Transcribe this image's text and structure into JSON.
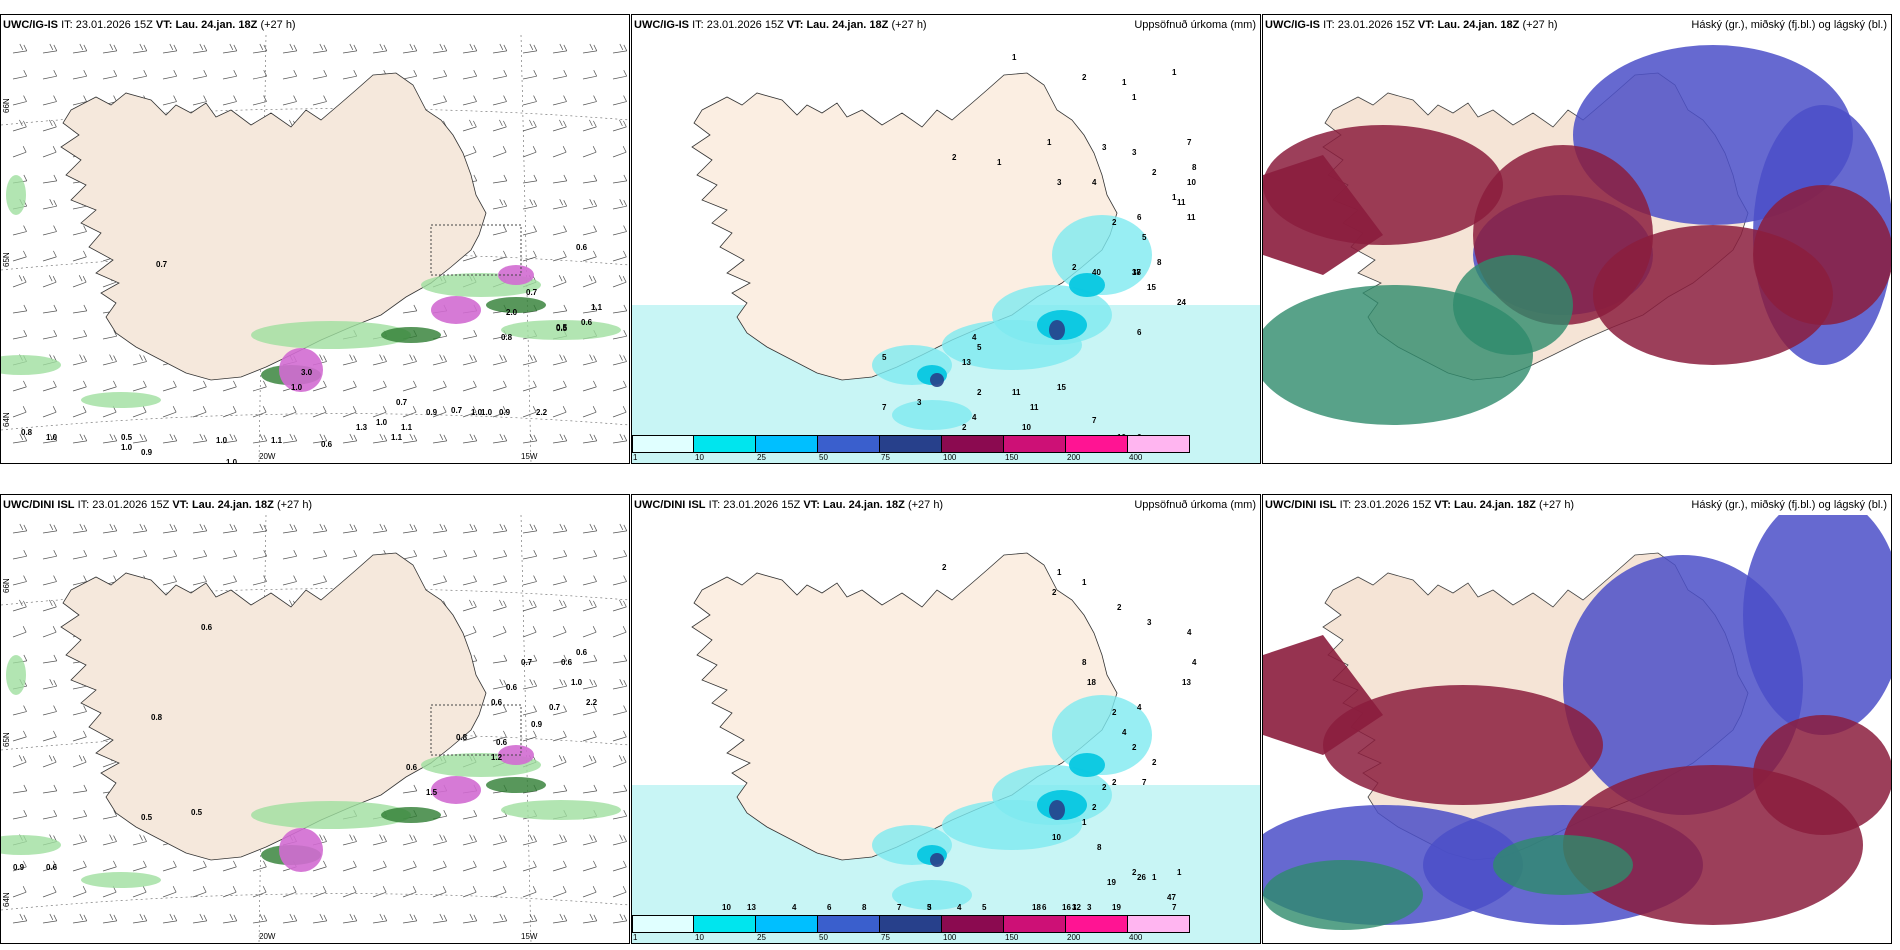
{
  "panels": [
    {
      "id": "p1",
      "model": "UWC/IG-IS",
      "it_label": "IT:",
      "it": "23.01.2026 15Z",
      "vt_label": "VT:",
      "vt": "Lau. 24.jan. 18Z",
      "lead": "(+27 h)",
      "right": ""
    },
    {
      "id": "p2",
      "model": "UWC/IG-IS",
      "it_label": "IT:",
      "it": "23.01.2026 15Z",
      "vt_label": "VT:",
      "vt": "Lau. 24.jan. 18Z",
      "lead": "(+27 h)",
      "right": "Uppsöfnuð úrkoma (mm)"
    },
    {
      "id": "p3",
      "model": "UWC/IG-IS",
      "it_label": "IT:",
      "it": "23.01.2026 15Z",
      "vt_label": "VT:",
      "vt": "Lau. 24.jan. 18Z",
      "lead": "(+27 h)",
      "right": "Háský (gr.), miðský (fj.bl.) og lágský (bl.)"
    },
    {
      "id": "p4",
      "model": "UWC/DINI ISL",
      "it_label": "IT:",
      "it": "23.01.2026 15Z",
      "vt_label": "VT:",
      "vt": "Lau. 24.jan. 18Z",
      "lead": "(+27 h)",
      "right": ""
    },
    {
      "id": "p5",
      "model": "UWC/DINI ISL",
      "it_label": "IT:",
      "it": "23.01.2026 15Z",
      "vt_label": "VT:",
      "vt": "Lau. 24.jan. 18Z",
      "lead": "(+27 h)",
      "right": "Uppsöfnuð úrkoma (mm)"
    },
    {
      "id": "p6",
      "model": "UWC/DINI ISL",
      "it_label": "IT:",
      "it": "23.01.2026 15Z",
      "vt_label": "VT:",
      "vt": "Lau. 24.jan. 18Z",
      "lead": "(+27 h)",
      "right": "Háský (gr.), miðský (fj.bl.) og lágský (bl.)"
    }
  ],
  "colorbar": {
    "ticks": [
      "1",
      "10",
      "25",
      "50",
      "75",
      "100",
      "150",
      "200",
      "400"
    ],
    "colors": [
      "#e0ffff",
      "#00e5ee",
      "#00bfff",
      "#3a5fcd",
      "#27408b",
      "#8b0a50",
      "#cd1076",
      "#ff1493",
      "#ffb5f0"
    ]
  },
  "lat_labels": {
    "n66": "66N",
    "n65": "65N",
    "n64": "64N"
  },
  "lon_labels": {
    "w20": "20W",
    "w15": "15W"
  },
  "p1_labels": [
    "0.7",
    "0.6",
    "0.5",
    "0.7",
    "0.6",
    "1.1",
    "2.0",
    "0.8",
    "0.5",
    "3.0",
    "1.0",
    "1.0",
    "0.7",
    "1.1",
    "0.9",
    "0.7",
    "1.0",
    "1.0",
    "0.9",
    "2.2",
    "1.3",
    "1.1",
    "1.0",
    "0.8",
    "0.5",
    "1.0",
    "0.9",
    "1.0",
    "1.1",
    "1.0",
    "0.6"
  ],
  "p2_labels": [
    "1",
    "2",
    "1",
    "1",
    "1",
    "2",
    "1",
    "1",
    "3",
    "4",
    "3",
    "2",
    "1",
    "7",
    "8",
    "10",
    "11",
    "11",
    "2",
    "6",
    "5",
    "8",
    "18",
    "15",
    "2",
    "37",
    "24",
    "6",
    "13",
    "4",
    "5",
    "11",
    "11",
    "15",
    "10",
    "2",
    "7",
    "7",
    "5",
    "3",
    "4",
    "2",
    "10",
    "6",
    "3",
    "40"
  ],
  "p4_labels": [
    "0.6",
    "0.8",
    "0.5",
    "0.5",
    "0.6",
    "0.7",
    "0.6",
    "0.6",
    "0.8",
    "0.6",
    "0.7",
    "0.6",
    "1.0",
    "2.2",
    "0.9",
    "0.6",
    "1.5",
    "1.2",
    "0.9",
    "0.6"
  ],
  "p5_labels": [
    "2",
    "2",
    "1",
    "1",
    "2",
    "3",
    "4",
    "4",
    "13",
    "8",
    "18",
    "2",
    "4",
    "4",
    "2",
    "2",
    "7",
    "2",
    "2",
    "2",
    "1",
    "10",
    "8",
    "2",
    "1",
    "1",
    "26",
    "47",
    "19",
    "12",
    "19",
    "7",
    "16",
    "3",
    "3",
    "6",
    "18",
    "5",
    "3",
    "4",
    "5",
    "7",
    "8",
    "6",
    "4",
    "13",
    "10"
  ]
}
